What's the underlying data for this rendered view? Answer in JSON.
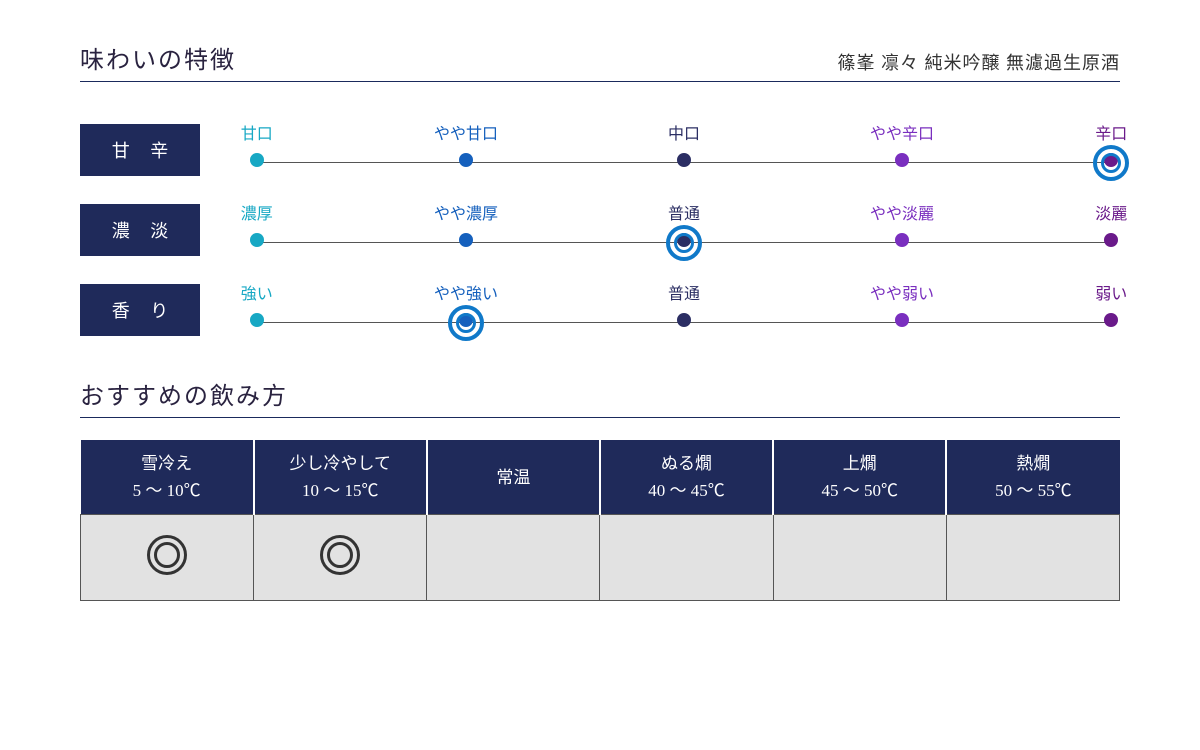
{
  "colors": {
    "navy": "#1f2a5a",
    "ring": "#1079c9",
    "header_bg": "#e2e2e2"
  },
  "header": {
    "section_title": "味わいの特徴",
    "product_name": "篠峯 凛々 純米吟醸 無濾過生原酒"
  },
  "point_colors": [
    "#17a8c4",
    "#1560bd",
    "#2b2e63",
    "#7a2fbf",
    "#6a1a8a"
  ],
  "taste_scales": [
    {
      "label": "甘 辛",
      "points": [
        "甘口",
        "やや甘口",
        "中口",
        "やや辛口",
        "辛口"
      ],
      "selected_index": 4
    },
    {
      "label": "濃 淡",
      "points": [
        "濃厚",
        "やや濃厚",
        "普通",
        "やや淡麗",
        "淡麗"
      ],
      "selected_index": 2
    },
    {
      "label": "香 り",
      "points": [
        "強い",
        "やや強い",
        "普通",
        "やや弱い",
        "弱い"
      ],
      "selected_index": 1
    }
  ],
  "serving": {
    "title": "おすすめの飲み方",
    "columns": [
      {
        "name": "雪冷え",
        "temp": "5 〜 10℃"
      },
      {
        "name": "少し冷やして",
        "temp": "10 〜 15℃"
      },
      {
        "name": "常温",
        "temp": ""
      },
      {
        "name": "ぬる燗",
        "temp": "40 〜 45℃"
      },
      {
        "name": "上燗",
        "temp": "45 〜 50℃"
      },
      {
        "name": "熱燗",
        "temp": "50 〜 55℃"
      }
    ],
    "recommended_indices": [
      0,
      1
    ]
  }
}
